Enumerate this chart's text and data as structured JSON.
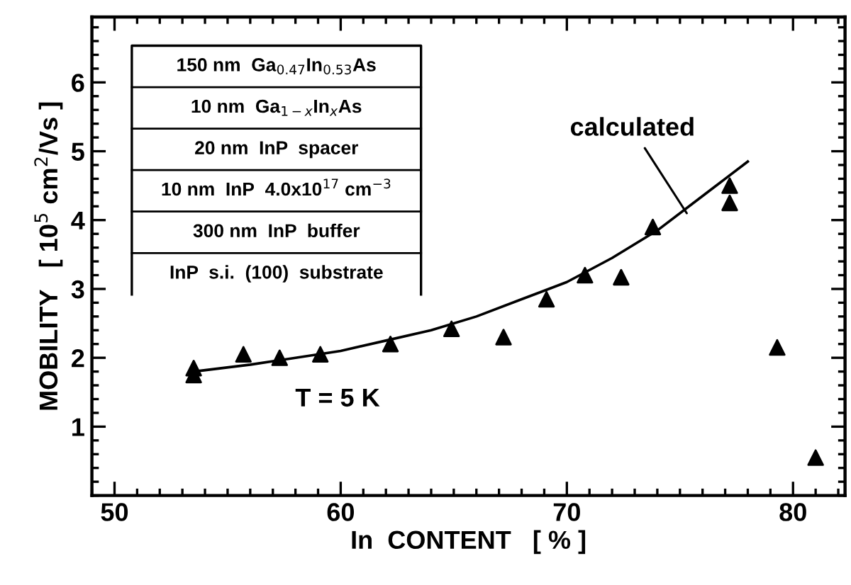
{
  "chart_data": {
    "type": "scatter",
    "xlabel": "In  CONTENT   [ % ]",
    "ylabel": "MOBILITY   [ 10$^{5}$ cm$^{2}$/Vs ]",
    "series": [
      {
        "type": "scatter",
        "color": "#000000",
        "marker": "triangle",
        "x": [
          53.5,
          53.5,
          55.7,
          57.3,
          59.1,
          62.2,
          64.9,
          67.2,
          69.1,
          70.8,
          72.4,
          73.8,
          77.2,
          77.2,
          79.3,
          81.0
        ],
        "values": [
          1.85,
          1.75,
          2.05,
          2.0,
          2.05,
          2.2,
          2.42,
          2.3,
          2.85,
          3.2,
          3.17,
          3.9,
          4.5,
          4.25,
          2.15,
          0.55
        ]
      },
      {
        "type": "line",
        "color": "#000000",
        "line_style": "solid",
        "x": [
          53.5,
          56,
          58,
          60,
          62,
          64,
          66,
          68,
          70,
          72,
          74,
          76,
          78
        ],
        "values": [
          1.8,
          1.9,
          2.0,
          2.1,
          2.25,
          2.4,
          2.6,
          2.85,
          3.1,
          3.45,
          3.85,
          4.35,
          4.85
        ]
      }
    ],
    "xlim": [
      49,
      82.3
    ],
    "xticks": [
      50,
      60,
      70,
      80
    ],
    "ylim": [
      0,
      6.95
    ],
    "yticks": [
      1,
      2,
      3,
      4,
      5,
      6
    ],
    "grid": false,
    "legend": false,
    "annotations": [
      "150 nm  Ga$_{0.47}$In$_{0.53}$As",
      "10 nm  Ga$_{1−x}$In$_{x}$As",
      "20 nm  InP  spacer",
      "10 nm  InP  4.0x10$^{17}$ cm$^{−3}$",
      "300 nm  InP  buffer",
      "InP  s.i.  (100)  substrate",
      {
        "text": "calculated",
        "x": 75.3,
        "y": 4.1
      },
      "T = 5 K"
    ]
  }
}
